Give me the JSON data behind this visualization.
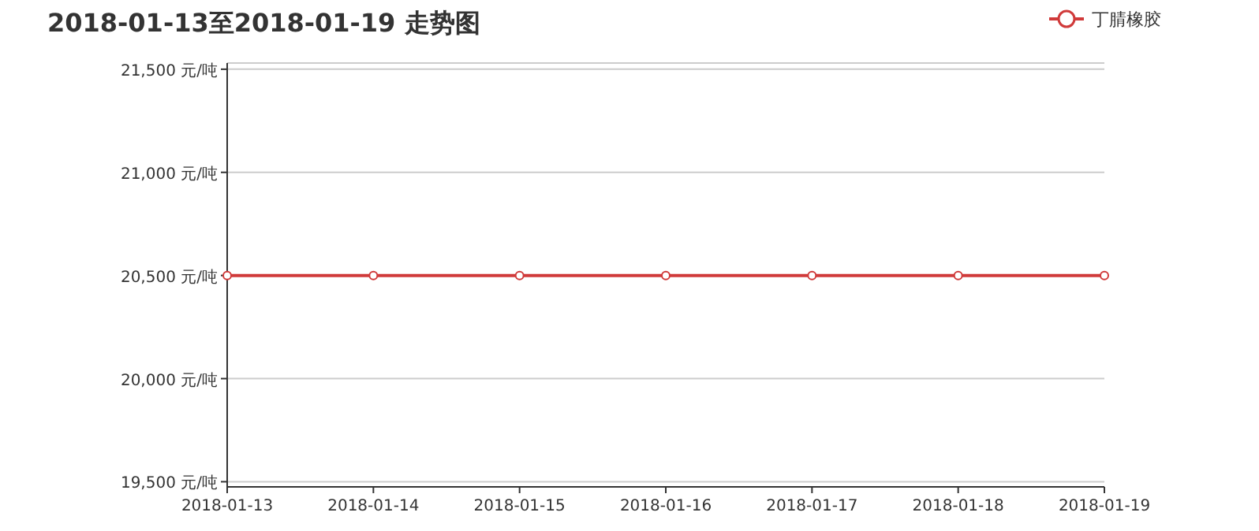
{
  "chart_data": {
    "type": "line",
    "title": "2018-01-13至2018-01-19 走势图",
    "categories": [
      "2018-01-13",
      "2018-01-14",
      "2018-01-15",
      "2018-01-16",
      "2018-01-17",
      "2018-01-18",
      "2018-01-19"
    ],
    "series": [
      {
        "name": "丁腈橡胶",
        "color": "#d03a3a",
        "values": [
          20500,
          20500,
          20500,
          20500,
          20500,
          20500,
          20500
        ]
      }
    ],
    "ylim": [
      19475,
      21530
    ],
    "yticks": [
      {
        "value": 19500,
        "label": "19,500 元/吨"
      },
      {
        "value": 20000,
        "label": "20,000 元/吨"
      },
      {
        "value": 20500,
        "label": "20,500 元/吨"
      },
      {
        "value": 21000,
        "label": "21,000 元/吨"
      },
      {
        "value": 21500,
        "label": "21,500 元/吨"
      }
    ],
    "grid": "y",
    "legend": "top right",
    "marker": "circle",
    "line_style": "solid"
  }
}
